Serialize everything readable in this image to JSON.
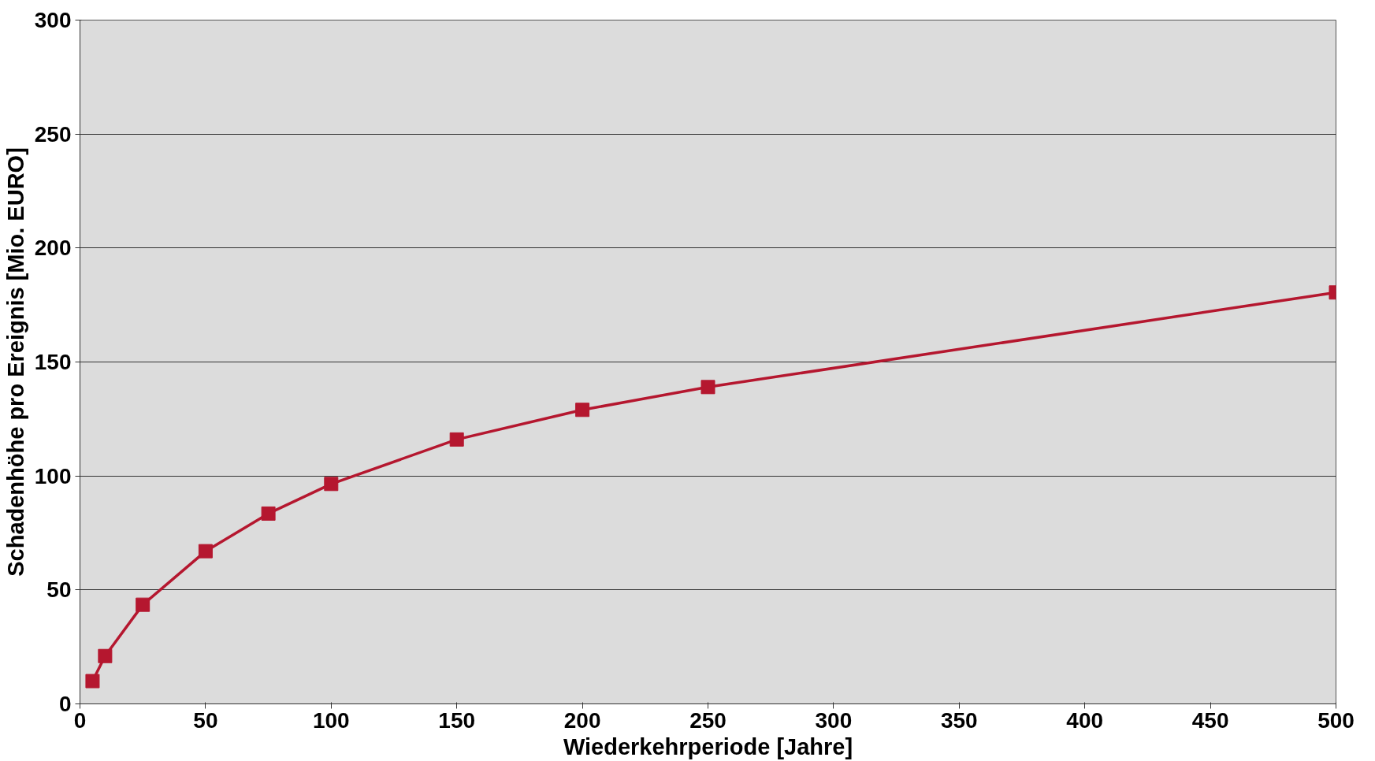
{
  "chart_data": {
    "type": "line",
    "xlabel": "Wiederkehrperiode [Jahre]",
    "ylabel": "Schadenhöhe pro Ereignis [Mio. EURO]",
    "x": [
      5,
      10,
      25,
      50,
      75,
      100,
      150,
      200,
      250,
      500
    ],
    "series": [
      {
        "color": "#b5172f",
        "values": [
          10,
          21,
          43.5,
          67,
          83.5,
          96.5,
          116,
          129,
          139,
          180.5
        ]
      }
    ],
    "xlim": [
      0,
      500
    ],
    "xticks": [
      0,
      50,
      100,
      150,
      200,
      250,
      300,
      350,
      400,
      450,
      500
    ],
    "ylim": [
      0,
      300
    ],
    "yticks": [
      0,
      50,
      100,
      150,
      200,
      250,
      300
    ],
    "grid": "y",
    "marker": "square",
    "line_style": "solid"
  }
}
